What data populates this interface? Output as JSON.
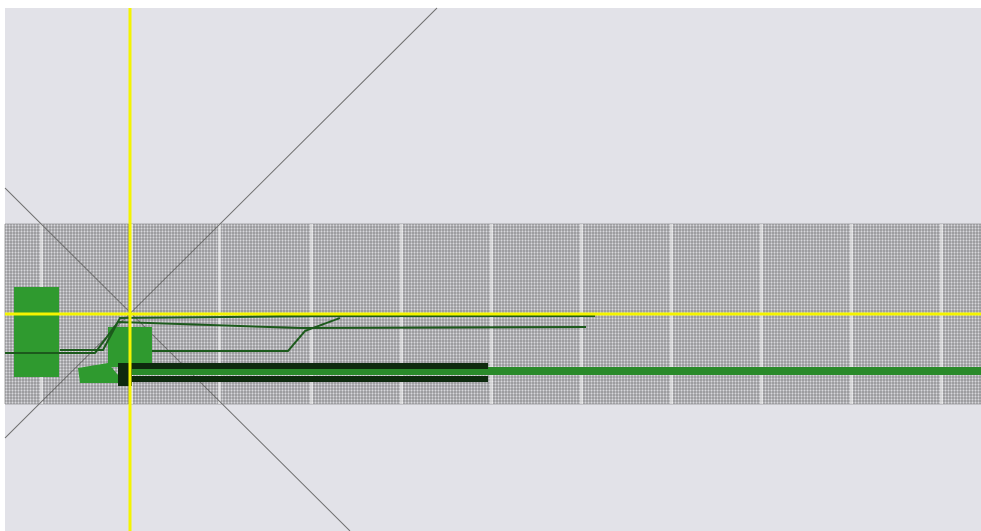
{
  "viewport": {
    "title": "",
    "background_color": "#e2e2e8",
    "frame_color": "#ffffff"
  },
  "colors": {
    "grid_line": "#3a3a3a",
    "grid_band_bg": "#d8d8dc",
    "crosshair": "#f4f400",
    "diagonal_guide": "#6e6e6e",
    "part_fill": "#2f9a2f",
    "part_dark": "#1c5a1c",
    "track": "#0e2a0e",
    "rail": "#2a8a2a"
  },
  "scene": {
    "has_grid": true,
    "crosshair_visible": true,
    "diagonal_guides": 2,
    "objects": [
      {
        "name": "block-left",
        "kind": "rectangle"
      },
      {
        "name": "block-center",
        "kind": "rectangle"
      },
      {
        "name": "connector-piece",
        "kind": "polygon"
      },
      {
        "name": "bar-thick",
        "kind": "bar"
      },
      {
        "name": "rail-long",
        "kind": "bar"
      },
      {
        "name": "wire-upper",
        "kind": "polyline"
      },
      {
        "name": "wire-middle",
        "kind": "polyline"
      },
      {
        "name": "wire-lower",
        "kind": "polyline"
      }
    ]
  }
}
